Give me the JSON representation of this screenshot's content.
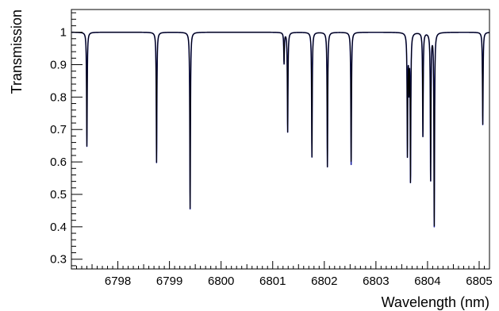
{
  "chart_data": {
    "type": "line",
    "title": "",
    "xlabel": "Wavelength (nm)",
    "ylabel": "Transmission",
    "xlim": [
      6797.1,
      6805.2
    ],
    "ylim": [
      0.27,
      1.07
    ],
    "x_ticks": [
      6798,
      6799,
      6800,
      6801,
      6802,
      6803,
      6804,
      6805
    ],
    "y_ticks": [
      0.3,
      0.4,
      0.5,
      0.6,
      0.7,
      0.8,
      0.9,
      1
    ],
    "grid": false,
    "legend": "none",
    "baseline": 1.0,
    "series": [
      {
        "color": "#000000",
        "dips": [
          {
            "x": 6797.4,
            "y": 0.648
          },
          {
            "x": 6798.75,
            "y": 0.598
          },
          {
            "x": 6799.4,
            "y": 0.455
          },
          {
            "x": 6801.22,
            "y": 0.905
          },
          {
            "x": 6801.29,
            "y": 0.692
          },
          {
            "x": 6801.76,
            "y": 0.615
          },
          {
            "x": 6802.06,
            "y": 0.585
          },
          {
            "x": 6802.52,
            "y": 0.592
          },
          {
            "x": 6803.61,
            "y": 0.628
          },
          {
            "x": 6803.64,
            "y": 0.842
          },
          {
            "x": 6803.67,
            "y": 0.543
          },
          {
            "x": 6803.91,
            "y": 0.678
          },
          {
            "x": 6804.06,
            "y": 0.545
          },
          {
            "x": 6804.13,
            "y": 0.4
          },
          {
            "x": 6805.07,
            "y": 0.715
          }
        ]
      },
      {
        "color": "#1c22a4",
        "dips": [
          {
            "x": 6797.4,
            "y": 0.648
          },
          {
            "x": 6798.75,
            "y": 0.598
          },
          {
            "x": 6799.4,
            "y": 0.455
          },
          {
            "x": 6801.22,
            "y": 0.905
          },
          {
            "x": 6801.29,
            "y": 0.692
          },
          {
            "x": 6801.76,
            "y": 0.615
          },
          {
            "x": 6802.06,
            "y": 0.585
          },
          {
            "x": 6802.52,
            "y": 0.592
          },
          {
            "x": 6803.61,
            "y": 0.628
          },
          {
            "x": 6803.64,
            "y": 0.842
          },
          {
            "x": 6803.67,
            "y": 0.543
          },
          {
            "x": 6803.91,
            "y": 0.678
          },
          {
            "x": 6804.06,
            "y": 0.545
          },
          {
            "x": 6804.13,
            "y": 0.4
          },
          {
            "x": 6805.07,
            "y": 0.715
          }
        ]
      }
    ]
  }
}
